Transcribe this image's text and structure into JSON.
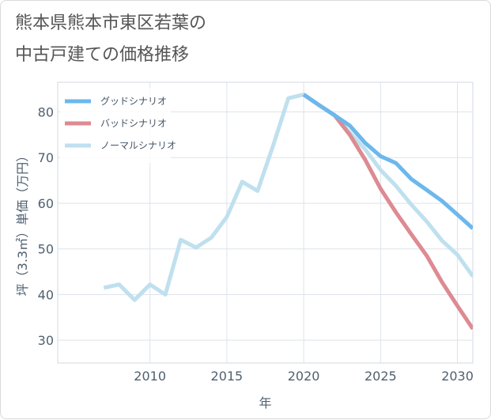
{
  "title_line1": "熊本県熊本市東区若葉の",
  "title_line2": "中古戸建ての価格推移",
  "chart_data": {
    "type": "line",
    "title": "熊本県熊本市東区若葉の中古戸建ての価格推移",
    "xlabel": "年",
    "ylabel": "坪（3.3㎡）単価（万円）",
    "xlim": [
      2004,
      2031
    ],
    "ylim": [
      25,
      86.5
    ],
    "xticks": [
      2010,
      2015,
      2020,
      2025,
      2030
    ],
    "yticks": [
      30,
      40,
      50,
      60,
      70,
      80
    ],
    "grid": true,
    "legend_position": "top-left",
    "series": [
      {
        "name": "グッドシナリオ",
        "color": "#6cb8ec",
        "x": [
          2020,
          2021,
          2022,
          2023,
          2024,
          2025,
          2026,
          2027,
          2028,
          2029,
          2030,
          2031
        ],
        "values": [
          83.8,
          81.5,
          79.3,
          77.0,
          73.2,
          70.3,
          68.8,
          65.3,
          62.9,
          60.5,
          57.5,
          54.5
        ]
      },
      {
        "name": "バッドシナリオ",
        "color": "#de8a92",
        "x": [
          2020,
          2021,
          2022,
          2023,
          2024,
          2025,
          2026,
          2027,
          2028,
          2029,
          2030,
          2031
        ],
        "values": [
          83.8,
          81.5,
          79.3,
          75.0,
          69.5,
          63.2,
          58.0,
          53.2,
          48.5,
          42.7,
          37.5,
          32.5
        ]
      },
      {
        "name": "ノーマルシナリオ",
        "color": "#bfe0ee",
        "x": [
          2007,
          2008,
          2009,
          2010,
          2011,
          2012,
          2013,
          2014,
          2015,
          2016,
          2017,
          2018,
          2019,
          2020,
          2021,
          2022,
          2023,
          2024,
          2025,
          2026,
          2027,
          2028,
          2029,
          2030,
          2031
        ],
        "values": [
          41.5,
          42.2,
          38.8,
          42.2,
          40.0,
          52.0,
          50.3,
          52.5,
          57.0,
          64.7,
          62.7,
          72.5,
          83.0,
          83.8,
          81.5,
          79.3,
          75.5,
          71.8,
          67.3,
          63.8,
          59.7,
          56.0,
          51.8,
          48.7,
          44.0
        ]
      }
    ]
  }
}
